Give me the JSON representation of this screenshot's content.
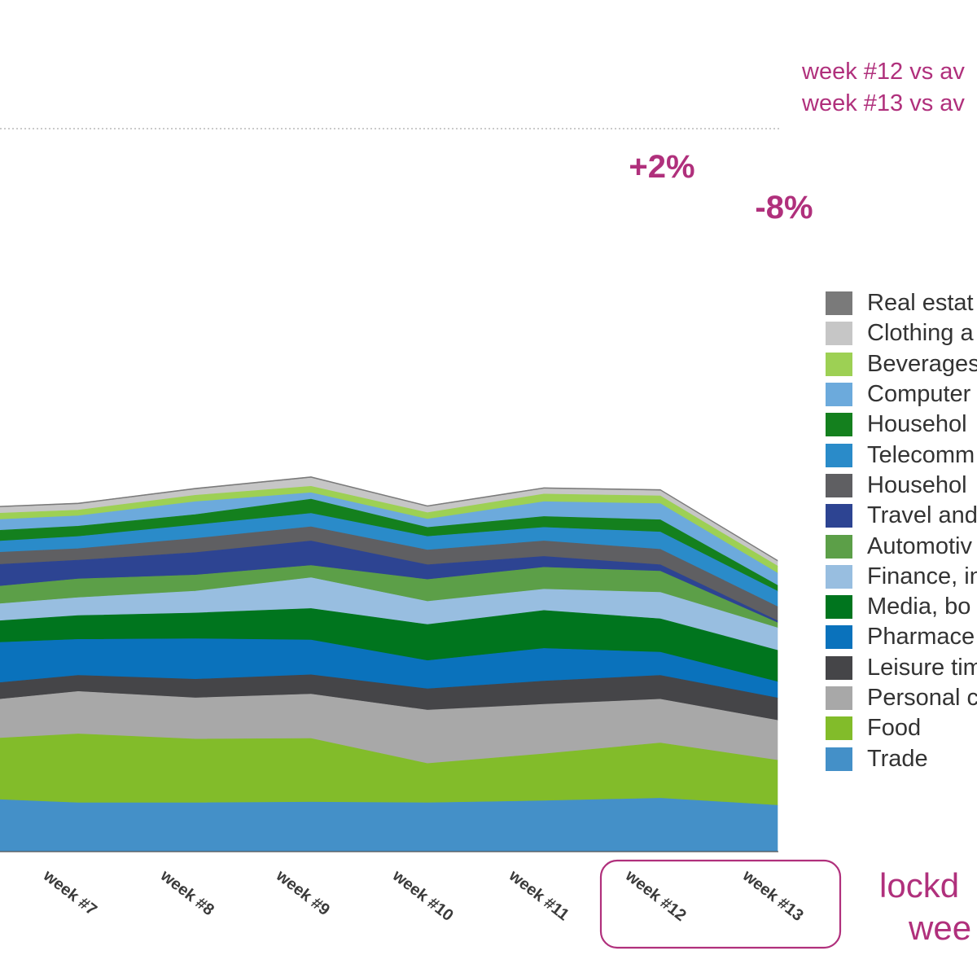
{
  "accent_color": "#b0307c",
  "notes": [
    "week #12 vs av",
    "week #13 vs av"
  ],
  "lockdown_text": [
    "lockd",
    "wee"
  ],
  "chart_data": {
    "type": "area",
    "stacked": true,
    "categories": [
      "",
      "week #7",
      "week #8",
      "week #9",
      "week #10",
      "week #11",
      "week #12",
      "week #13"
    ],
    "highlighted_categories": [
      "week #12",
      "week #13"
    ],
    "annotations": [
      {
        "category": "week #12",
        "text": "+2%"
      },
      {
        "category": "week #13",
        "text": "-8%"
      }
    ],
    "legend_position": "right",
    "grid": false,
    "series": [
      {
        "name": "Trade",
        "color": "#4490c8",
        "values": [
          8.2,
          7.6,
          7.6,
          7.7,
          7.6,
          7.9,
          8.3,
          7.2
        ]
      },
      {
        "name": "Food",
        "color": "#82bc2a",
        "values": [
          9.3,
          10.7,
          9.9,
          9.9,
          6.1,
          7.3,
          8.6,
          7.0
        ]
      },
      {
        "name": "Personal c",
        "color": "#a8a8a8",
        "values": [
          5.9,
          6.6,
          6.4,
          6.9,
          8.3,
          7.7,
          6.8,
          6.2
        ]
      },
      {
        "name": "Leisure tim",
        "color": "#454548",
        "values": [
          2.6,
          2.5,
          2.9,
          3.0,
          3.3,
          3.6,
          3.7,
          3.5
        ]
      },
      {
        "name": "Pharmace",
        "color": "#0a72bc",
        "values": [
          6.4,
          5.6,
          6.3,
          5.4,
          4.4,
          5.1,
          3.6,
          2.5
        ]
      },
      {
        "name": "Media, bo",
        "color": "#00751e",
        "values": [
          3.3,
          3.7,
          4.0,
          4.9,
          5.6,
          5.9,
          5.2,
          4.9
        ]
      },
      {
        "name": "Finance, in",
        "color": "#98bee0",
        "values": [
          2.6,
          2.8,
          3.4,
          4.8,
          3.6,
          3.3,
          4.1,
          3.5
        ]
      },
      {
        "name": "Automotiv",
        "color": "#5c9f48",
        "values": [
          2.7,
          2.9,
          2.5,
          1.9,
          3.4,
          3.4,
          3.3,
          0.8
        ]
      },
      {
        "name": "Travel and",
        "color": "#2d4492",
        "values": [
          3.5,
          2.9,
          3.5,
          3.8,
          2.3,
          1.7,
          1.0,
          0.3
        ]
      },
      {
        "name": "Househol",
        "color": "#5f5f62",
        "values": [
          1.9,
          1.8,
          2.2,
          2.2,
          2.3,
          2.4,
          2.4,
          2.2
        ]
      },
      {
        "name": "Telecomm",
        "color": "#2a8bc9",
        "values": [
          1.7,
          1.9,
          2.1,
          2.1,
          2.1,
          2.1,
          2.7,
          2.4
        ]
      },
      {
        "name": "Househol",
        "color": "#14801e",
        "values": [
          1.7,
          1.6,
          1.6,
          2.2,
          1.4,
          1.7,
          1.9,
          0.9
        ]
      },
      {
        "name": "Computer",
        "color": "#6caadc",
        "values": [
          1.7,
          1.6,
          2.0,
          1.0,
          1.3,
          2.3,
          2.5,
          1.9
        ]
      },
      {
        "name": "Beverages",
        "color": "#9dd054",
        "values": [
          1.0,
          0.9,
          1.0,
          1.0,
          1.0,
          1.2,
          1.2,
          1.1
        ]
      },
      {
        "name": "Clothing a",
        "color": "#c6c6c6",
        "values": [
          0.9,
          0.9,
          0.9,
          1.3,
          0.9,
          0.8,
          0.8,
          0.7
        ]
      },
      {
        "name": "Real estat",
        "color": "#7a7a7a",
        "values": [
          0.2,
          0.2,
          0.2,
          0.2,
          0.2,
          0.2,
          0.2,
          0.2
        ]
      }
    ]
  }
}
